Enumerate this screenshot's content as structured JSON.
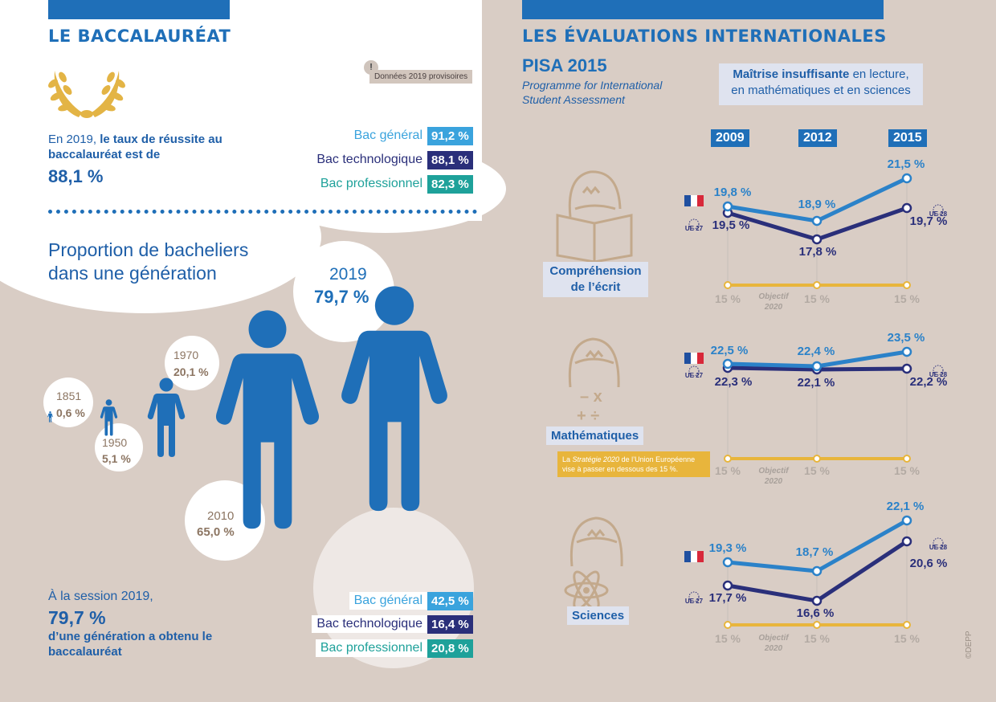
{
  "left": {
    "title": "LE BACCALAURÉAT",
    "note": "Données 2019 provisoires",
    "note_icon": "!",
    "success_text_1": "En 2019, ",
    "success_text_bold": "le taux de réussite au baccalauréat est de",
    "success_value": "88,1 %",
    "success_rates": [
      {
        "label": "Bac général",
        "value": "91,2 %",
        "color": "#3aa3dd"
      },
      {
        "label": "Bac technologique",
        "value": "88,1 %",
        "color": "#2a2f7a"
      },
      {
        "label": "Bac professionnel",
        "value": "82,3 %",
        "color": "#1ea19a"
      }
    ],
    "proportion_title": "Proportion de bacheliers dans une génération",
    "generations": [
      {
        "year": "1851",
        "value": "0,6 %"
      },
      {
        "year": "1950",
        "value": "5,1 %"
      },
      {
        "year": "1970",
        "value": "20,1 %"
      },
      {
        "year": "2010",
        "value": "65,0 %"
      },
      {
        "year": "2019",
        "value": "79,7 %"
      }
    ],
    "session_text": "À la session 2019,",
    "session_value": "79,7 %",
    "session_text_2": "d’une génération a obtenu le baccalauréat",
    "session_rates": [
      {
        "label": "Bac général",
        "value": "42,5 %",
        "color": "#3aa3dd"
      },
      {
        "label": "Bac technologique",
        "value": "16,4 %",
        "color": "#2a2f7a"
      },
      {
        "label": "Bac professionnel",
        "value": "20,8 %",
        "color": "#1ea19a"
      }
    ]
  },
  "right": {
    "title": "LES ÉVALUATIONS INTERNATIONALES",
    "pisa_title": "PISA 2015",
    "pisa_subtitle_1": "Programme for International",
    "pisa_subtitle_2": "Student Assessment",
    "legend_bold": "Maîtrise insuffisante",
    "legend_rest_1": " en lecture,",
    "legend_rest_2": "en mathématiques et en sciences",
    "years": [
      "2009",
      "2012",
      "2015"
    ],
    "objective_label": "Objectif",
    "objective_year": "2020",
    "objective_value": "15 %",
    "france_marker": "FR",
    "ue27": "UE 27",
    "ue28": "UE 28",
    "strategy_note_1": "La ",
    "strategy_note_italic": "Stratégie 2020",
    "strategy_note_2": " de l’Union Européenne",
    "strategy_note_3": "vise à passer en dessous des 15 %.",
    "copyright": "©DEPP"
  },
  "chart_data": [
    {
      "type": "line",
      "title": "Compréhension de l’écrit",
      "x": [
        "2009",
        "2012",
        "2015"
      ],
      "series": [
        {
          "name": "France",
          "values": [
            19.8,
            18.9,
            21.5
          ],
          "labels": [
            "19,8 %",
            "18,9 %",
            "21,5 %"
          ],
          "color": "#2b82c9"
        },
        {
          "name": "UE",
          "values": [
            19.5,
            17.8,
            19.7
          ],
          "labels": [
            "19,5 %",
            "17,8 %",
            "19,7 %"
          ],
          "color": "#2a2f7a"
        },
        {
          "name": "Objectif 2020",
          "values": [
            15,
            15,
            15
          ],
          "labels": [
            "15 %",
            "15 %",
            "15 %"
          ],
          "color": "#e8b53c"
        }
      ]
    },
    {
      "type": "line",
      "title": "Mathématiques",
      "x": [
        "2009",
        "2012",
        "2015"
      ],
      "series": [
        {
          "name": "France",
          "values": [
            22.5,
            22.4,
            23.5
          ],
          "labels": [
            "22,5 %",
            "22,4 %",
            "23,5 %"
          ],
          "color": "#2b82c9"
        },
        {
          "name": "UE",
          "values": [
            22.3,
            22.1,
            22.2
          ],
          "labels": [
            "22,3 %",
            "22,1 %",
            "22,2 %"
          ],
          "color": "#2a2f7a"
        },
        {
          "name": "Objectif 2020",
          "values": [
            15,
            15,
            15
          ],
          "labels": [
            "15 %",
            "15 %",
            "15 %"
          ],
          "color": "#e8b53c"
        }
      ]
    },
    {
      "type": "line",
      "title": "Sciences",
      "x": [
        "2009",
        "2012",
        "2015"
      ],
      "series": [
        {
          "name": "France",
          "values": [
            19.3,
            18.7,
            22.1
          ],
          "labels": [
            "19,3 %",
            "18,7 %",
            "22,1 %"
          ],
          "color": "#2b82c9"
        },
        {
          "name": "UE",
          "values": [
            17.7,
            16.6,
            20.6
          ],
          "labels": [
            "17,7 %",
            "16,6 %",
            "20,6 %"
          ],
          "color": "#2a2f7a"
        },
        {
          "name": "Objectif 2020",
          "values": [
            15,
            15,
            15
          ],
          "labels": [
            "15 %",
            "15 %",
            "15 %"
          ],
          "color": "#e8b53c"
        }
      ]
    }
  ]
}
